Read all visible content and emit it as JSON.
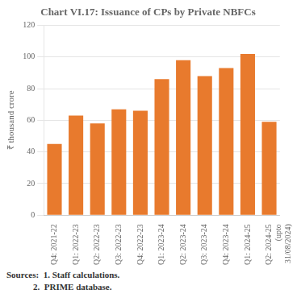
{
  "chart_data": {
    "type": "bar",
    "title": "Chart VI.17: Issuance of CPs by Private NBFCs",
    "categories": [
      "Q4: 2021-22",
      "Q1: 2022-23",
      "Q2: 2022-23",
      "Q3: 2022-23",
      "Q4: 2022-23",
      "Q1: 2023-24",
      "Q2: 2023-24",
      "Q3: 2023-24",
      "Q4: 2023-24",
      "Q1: 2024-25",
      "Q2: 2024-25\n(upto\n31/08/2024)"
    ],
    "values": [
      45,
      63,
      58,
      67,
      66,
      86,
      98,
      88,
      93,
      102,
      59
    ],
    "color": "#E87A2D",
    "ylabel": "₹ thousand crore",
    "ylim": [
      0,
      120
    ],
    "yticks": [
      0,
      20,
      40,
      60,
      80,
      100,
      120
    ],
    "grid": true,
    "annotations": [
      "Sources:  1. Staff calculations.\n            2.  PRIME database."
    ]
  }
}
